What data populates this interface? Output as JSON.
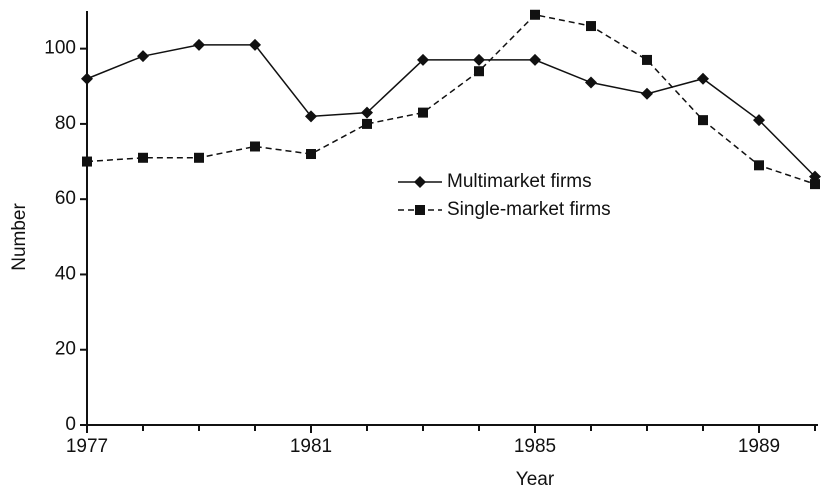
{
  "chart_data": {
    "type": "line",
    "x_label": "Year",
    "y_label": "Number",
    "x": [
      1977,
      1978,
      1979,
      1980,
      1981,
      1982,
      1983,
      1984,
      1985,
      1986,
      1987,
      1988,
      1989,
      1990
    ],
    "series": [
      {
        "name": "Multimarket firms",
        "color": "#111111",
        "marker": "diamond",
        "dash": "solid",
        "values": [
          92,
          98,
          101,
          101,
          82,
          83,
          97,
          97,
          97,
          91,
          88,
          92,
          81,
          66
        ]
      },
      {
        "name": "Single-market firms",
        "color": "#111111",
        "marker": "square",
        "dash": "dashed",
        "values": [
          70,
          71,
          71,
          74,
          72,
          80,
          83,
          94,
          109,
          106,
          97,
          81,
          69,
          64
        ]
      }
    ],
    "xlim": [
      1977,
      1990
    ],
    "ylim": [
      0,
      110
    ],
    "xticks": [
      1977,
      1981,
      1985,
      1989
    ],
    "x_minor_ticks": [
      1977,
      1978,
      1979,
      1980,
      1981,
      1982,
      1983,
      1984,
      1985,
      1986,
      1987,
      1988,
      1989,
      1990
    ],
    "yticks": [
      0,
      20,
      40,
      60,
      80,
      100
    ],
    "grid": false,
    "legend": "center"
  }
}
